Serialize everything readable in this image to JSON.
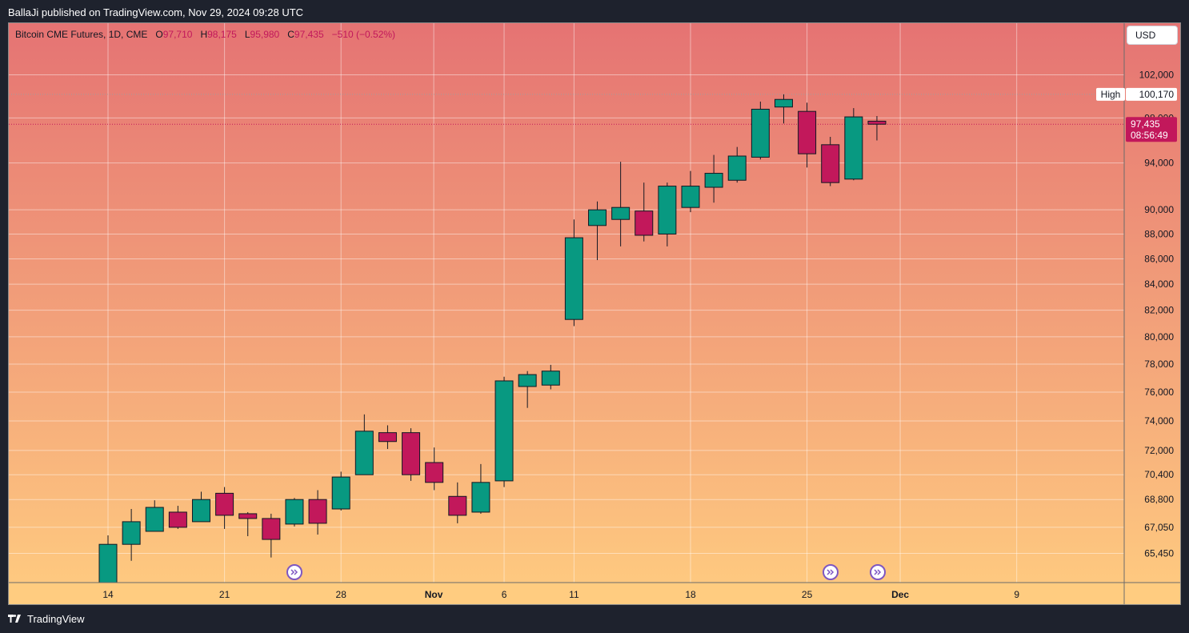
{
  "publisher": "BallaJi published on TradingView.com, Nov 29, 2024 09:28 UTC",
  "footer": {
    "brand": "TradingView"
  },
  "currency": "USD",
  "legend": {
    "symbol": "Bitcoin CME Futures, 1D, CME",
    "o_label": "O",
    "o_value": "97,710",
    "h_label": "H",
    "h_value": "98,175",
    "l_label": "L",
    "l_value": "95,980",
    "c_label": "C",
    "c_value": "97,435",
    "change": "−510 (−0.52%)"
  },
  "colors": {
    "up": "#089981",
    "down": "#c2185b",
    "bg_top": "#e57373",
    "bg_bottom": "#ffcc80",
    "price_label": "#c2185b",
    "axis_bg": "#ffcc80"
  },
  "chart_data": {
    "type": "candlestick",
    "y_scale": "log",
    "ylim": [
      63700,
      107000
    ],
    "x_ticks": [
      {
        "label": "14",
        "bold": false
      },
      {
        "label": "21",
        "bold": false
      },
      {
        "label": "28",
        "bold": false
      },
      {
        "label": "Nov",
        "bold": true
      },
      {
        "label": "6",
        "bold": false
      },
      {
        "label": "11",
        "bold": false
      },
      {
        "label": "18",
        "bold": false
      },
      {
        "label": "25",
        "bold": false
      },
      {
        "label": "Dec",
        "bold": true
      },
      {
        "label": "9",
        "bold": false
      }
    ],
    "y_ticks": [
      "102,000",
      "98,000",
      "94,000",
      "90,000",
      "88,000",
      "86,000",
      "84,000",
      "82,000",
      "80,000",
      "78,000",
      "76,000",
      "74,000",
      "72,000",
      "70,400",
      "68,800",
      "67,050",
      "65,450"
    ],
    "candles": [
      {
        "date": "Oct 14",
        "o": 63500,
        "h": 66550,
        "l": 63400,
        "c": 66000
      },
      {
        "date": "Oct 15",
        "o": 66000,
        "h": 68200,
        "l": 65000,
        "c": 67400
      },
      {
        "date": "Oct 16",
        "o": 66800,
        "h": 68750,
        "l": 66800,
        "c": 68300
      },
      {
        "date": "Oct 17",
        "o": 68000,
        "h": 68400,
        "l": 66950,
        "c": 67050
      },
      {
        "date": "Oct 18",
        "o": 67400,
        "h": 69300,
        "l": 67400,
        "c": 68800
      },
      {
        "date": "Oct 21",
        "o": 69200,
        "h": 69600,
        "l": 66950,
        "c": 67800
      },
      {
        "date": "Oct 22",
        "o": 67900,
        "h": 68000,
        "l": 66500,
        "c": 67600
      },
      {
        "date": "Oct 23",
        "o": 67600,
        "h": 67900,
        "l": 65200,
        "c": 66300
      },
      {
        "date": "Oct 24",
        "o": 67250,
        "h": 68900,
        "l": 67100,
        "c": 68800
      },
      {
        "date": "Oct 25",
        "o": 68800,
        "h": 69400,
        "l": 66600,
        "c": 67300
      },
      {
        "date": "Oct 28",
        "o": 68200,
        "h": 70600,
        "l": 68100,
        "c": 70250
      },
      {
        "date": "Oct 29",
        "o": 70400,
        "h": 74450,
        "l": 70400,
        "c": 73300
      },
      {
        "date": "Oct 30",
        "o": 73200,
        "h": 73700,
        "l": 72100,
        "c": 72600
      },
      {
        "date": "Oct 31",
        "o": 73200,
        "h": 73500,
        "l": 70000,
        "c": 70400
      },
      {
        "date": "Nov 1",
        "o": 71200,
        "h": 72200,
        "l": 69400,
        "c": 69900
      },
      {
        "date": "Nov 4",
        "o": 69000,
        "h": 69900,
        "l": 67300,
        "c": 67800
      },
      {
        "date": "Nov 5",
        "o": 68000,
        "h": 71100,
        "l": 67900,
        "c": 69900
      },
      {
        "date": "Nov 6",
        "o": 70000,
        "h": 77100,
        "l": 69600,
        "c": 76800
      },
      {
        "date": "Nov 7",
        "o": 76400,
        "h": 77500,
        "l": 74900,
        "c": 77250
      },
      {
        "date": "Nov 8",
        "o": 76500,
        "h": 77950,
        "l": 76200,
        "c": 77500
      },
      {
        "date": "Nov 11",
        "o": 81300,
        "h": 89200,
        "l": 80800,
        "c": 87700
      },
      {
        "date": "Nov 12",
        "o": 88700,
        "h": 90700,
        "l": 85900,
        "c": 90000
      },
      {
        "date": "Nov 13",
        "o": 89200,
        "h": 94100,
        "l": 87000,
        "c": 90200
      },
      {
        "date": "Nov 14",
        "o": 89900,
        "h": 92300,
        "l": 87400,
        "c": 87900
      },
      {
        "date": "Nov 15",
        "o": 88000,
        "h": 92300,
        "l": 87000,
        "c": 92000
      },
      {
        "date": "Nov 18",
        "o": 90200,
        "h": 93300,
        "l": 89800,
        "c": 92000
      },
      {
        "date": "Nov 19",
        "o": 91900,
        "h": 94700,
        "l": 90600,
        "c": 93100
      },
      {
        "date": "Nov 20",
        "o": 92500,
        "h": 95400,
        "l": 92300,
        "c": 94600
      },
      {
        "date": "Nov 21",
        "o": 94500,
        "h": 99500,
        "l": 94300,
        "c": 98800
      },
      {
        "date": "Nov 22",
        "o": 99000,
        "h": 100170,
        "l": 97500,
        "c": 99700
      },
      {
        "date": "Nov 25",
        "o": 98600,
        "h": 99400,
        "l": 93600,
        "c": 94800
      },
      {
        "date": "Nov 26",
        "o": 95600,
        "h": 96300,
        "l": 92000,
        "c": 92300
      },
      {
        "date": "Nov 27",
        "o": 92600,
        "h": 98900,
        "l": 92500,
        "c": 98100
      },
      {
        "date": "Nov 29",
        "o": 97710,
        "h": 98175,
        "l": 95980,
        "c": 97435
      }
    ],
    "high_line": {
      "label": "High",
      "value_label": "100,170",
      "value": 100170
    },
    "last_price": {
      "value_label": "97,435",
      "countdown": "08:56:49",
      "value": 97435
    }
  }
}
